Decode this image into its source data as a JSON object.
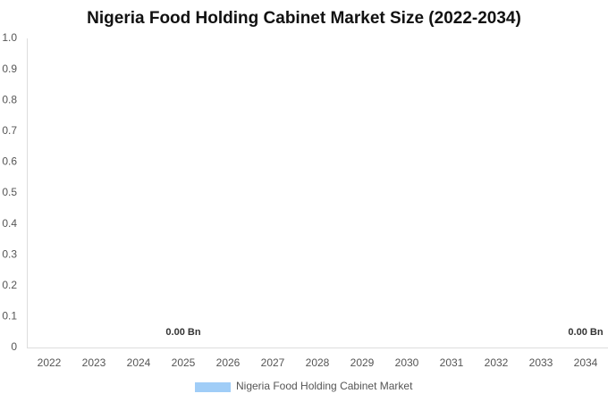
{
  "chart_data": {
    "type": "bar",
    "title": "Nigeria Food Holding Cabinet Market Size (2022-2034)",
    "categories": [
      "2022",
      "2023",
      "2024",
      "2025",
      "2026",
      "2027",
      "2028",
      "2029",
      "2030",
      "2031",
      "2032",
      "2033",
      "2034"
    ],
    "series": [
      {
        "name": "Nigeria Food Holding Cabinet Market",
        "color": "#a0cdf7",
        "values": [
          0,
          0,
          0,
          0,
          0,
          0,
          0,
          0,
          0,
          0,
          0,
          0,
          0
        ],
        "value_labels": [
          null,
          null,
          null,
          "0.00 Bn",
          null,
          null,
          null,
          null,
          null,
          null,
          null,
          null,
          "0.00 Bn"
        ]
      }
    ],
    "ylim": [
      0,
      1
    ],
    "yticks": [
      0,
      0.1,
      0.2,
      0.3,
      0.4,
      0.5,
      0.6,
      0.7,
      0.8,
      0.9,
      {
        "value": 1,
        "label": "1.0"
      }
    ],
    "grid": false,
    "legend": "bottom"
  }
}
